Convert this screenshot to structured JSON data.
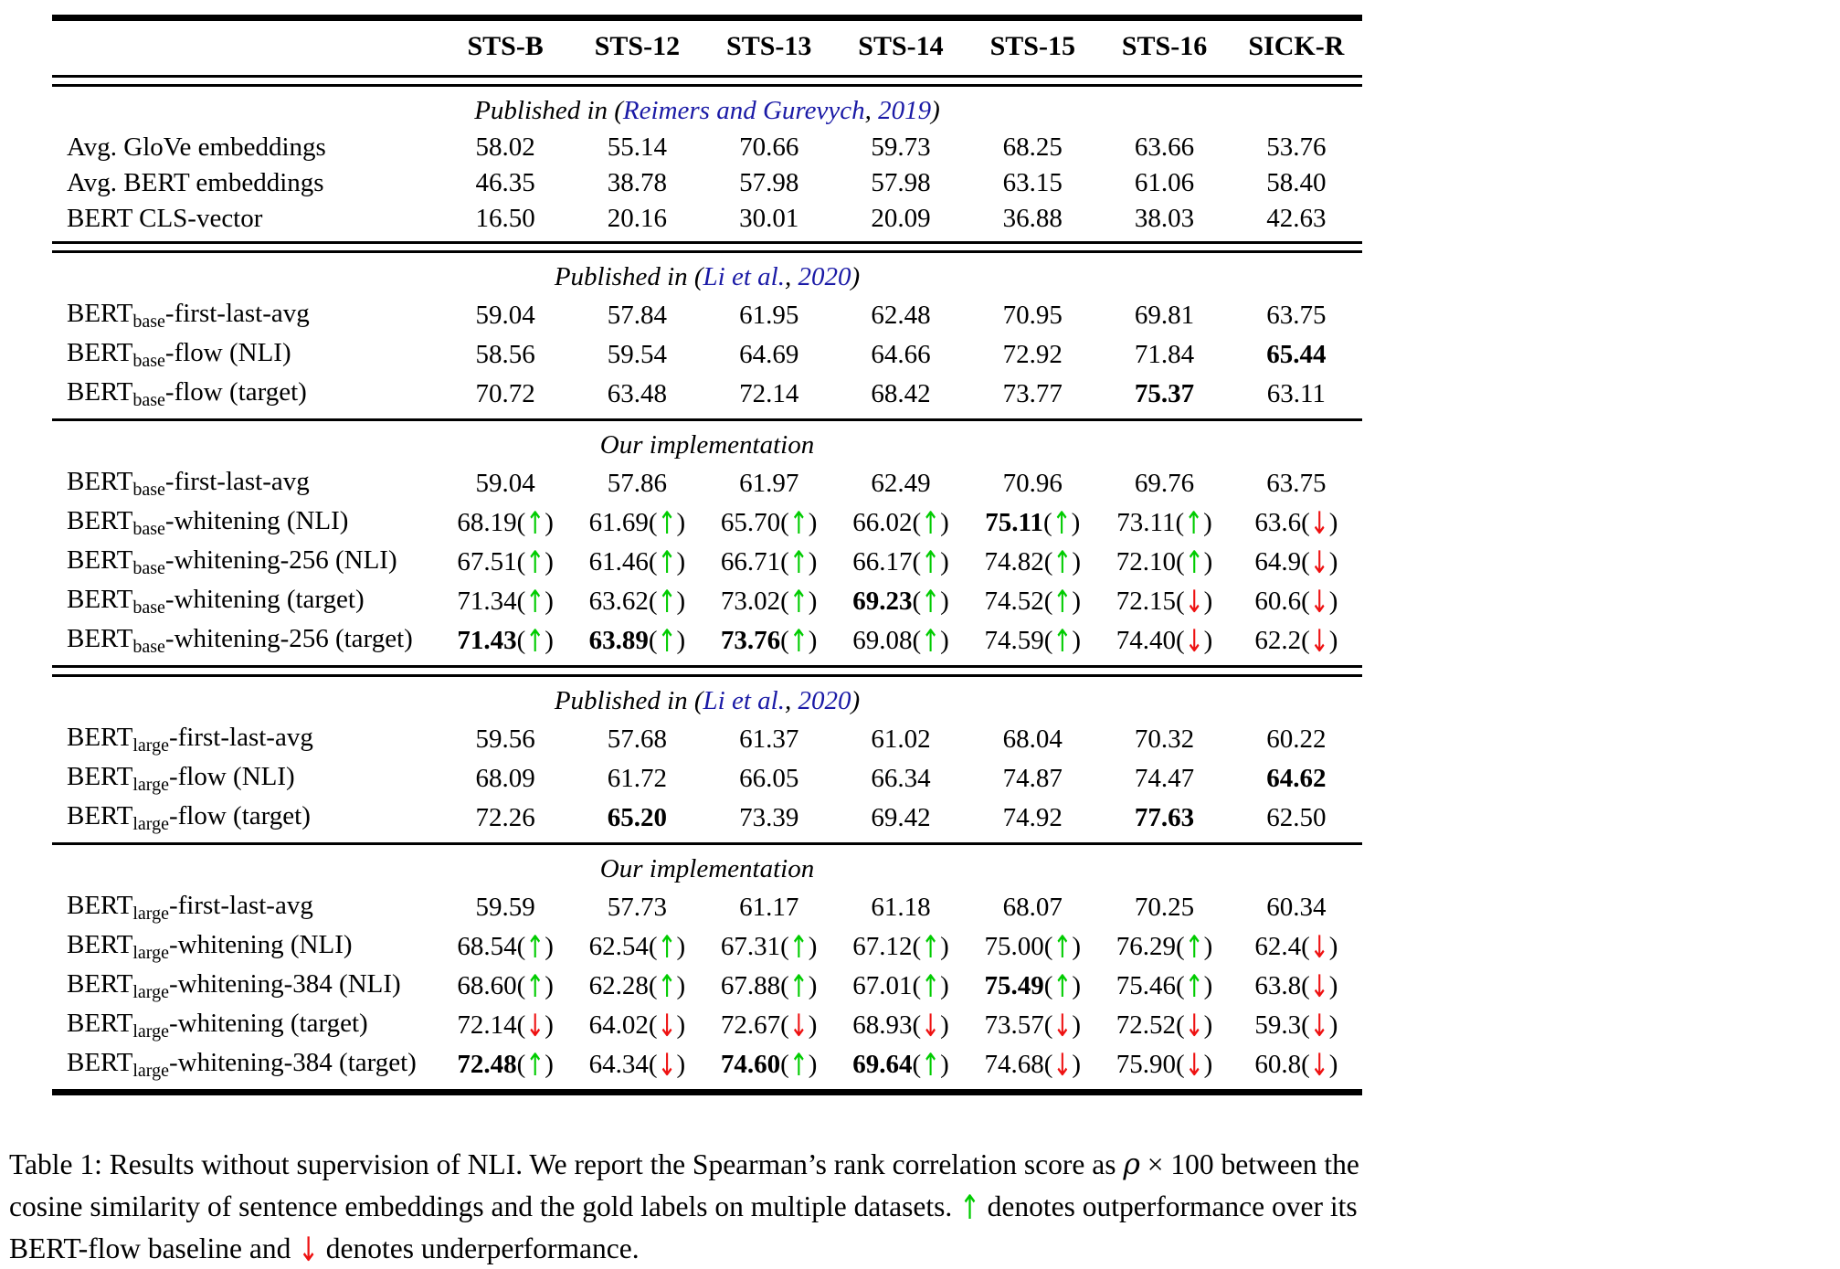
{
  "colors": {
    "link_blue": "#1a1aa6",
    "up_green": "#00cc00",
    "down_red": "#ee1111",
    "text": "#000000",
    "background": "#ffffff"
  },
  "icons": {
    "up_arrow": "↑",
    "down_arrow": "↓"
  },
  "table": {
    "columns": [
      "STS-B",
      "STS-12",
      "STS-13",
      "STS-14",
      "STS-15",
      "STS-16",
      "SICK-R"
    ],
    "sections": [
      {
        "rule_before": "double",
        "header_parts": [
          {
            "text": "Published in ("
          },
          {
            "text": "Reimers and Gurevych",
            "link": true
          },
          {
            "text": ", "
          },
          {
            "text": "2019",
            "link": true
          },
          {
            "text": ")"
          }
        ],
        "rows": [
          {
            "label": {
              "pre": "Avg. GloVe embeddings"
            },
            "cells": [
              {
                "v": "58.02"
              },
              {
                "v": "55.14"
              },
              {
                "v": "70.66"
              },
              {
                "v": "59.73"
              },
              {
                "v": "68.25"
              },
              {
                "v": "63.66"
              },
              {
                "v": "53.76"
              }
            ]
          },
          {
            "label": {
              "pre": "Avg. BERT embeddings"
            },
            "cells": [
              {
                "v": "46.35"
              },
              {
                "v": "38.78"
              },
              {
                "v": "57.98"
              },
              {
                "v": "57.98"
              },
              {
                "v": "63.15"
              },
              {
                "v": "61.06"
              },
              {
                "v": "58.40"
              }
            ]
          },
          {
            "label": {
              "pre": "BERT CLS-vector"
            },
            "cells": [
              {
                "v": "16.50"
              },
              {
                "v": "20.16"
              },
              {
                "v": "30.01"
              },
              {
                "v": "20.09"
              },
              {
                "v": "36.88"
              },
              {
                "v": "38.03"
              },
              {
                "v": "42.63"
              }
            ]
          }
        ]
      },
      {
        "rule_before": "double",
        "header_parts": [
          {
            "text": "Published in ("
          },
          {
            "text": "Li et al.",
            "link": true
          },
          {
            "text": ", "
          },
          {
            "text": "2020",
            "link": true
          },
          {
            "text": ")"
          }
        ],
        "rows": [
          {
            "label": {
              "pre": "BERT",
              "sub": "base",
              "post": "-first-last-avg"
            },
            "cells": [
              {
                "v": "59.04"
              },
              {
                "v": "57.84"
              },
              {
                "v": "61.95"
              },
              {
                "v": "62.48"
              },
              {
                "v": "70.95"
              },
              {
                "v": "69.81"
              },
              {
                "v": "63.75"
              }
            ]
          },
          {
            "label": {
              "pre": "BERT",
              "sub": "base",
              "post": "-flow (NLI)"
            },
            "cells": [
              {
                "v": "58.56"
              },
              {
                "v": "59.54"
              },
              {
                "v": "64.69"
              },
              {
                "v": "64.66"
              },
              {
                "v": "72.92"
              },
              {
                "v": "71.84"
              },
              {
                "v": "65.44",
                "b": true
              }
            ]
          },
          {
            "label": {
              "pre": "BERT",
              "sub": "base",
              "post": "-flow (target)"
            },
            "cells": [
              {
                "v": "70.72"
              },
              {
                "v": "63.48"
              },
              {
                "v": "72.14"
              },
              {
                "v": "68.42"
              },
              {
                "v": "73.77"
              },
              {
                "v": "75.37",
                "b": true
              },
              {
                "v": "63.11"
              }
            ]
          }
        ]
      },
      {
        "rule_before": "single",
        "header_parts": [
          {
            "text": "Our implementation"
          }
        ],
        "rows": [
          {
            "label": {
              "pre": "BERT",
              "sub": "base",
              "post": "-first-last-avg"
            },
            "cells": [
              {
                "v": "59.04"
              },
              {
                "v": "57.86"
              },
              {
                "v": "61.97"
              },
              {
                "v": "62.49"
              },
              {
                "v": "70.96"
              },
              {
                "v": "69.76"
              },
              {
                "v": "63.75"
              }
            ]
          },
          {
            "label": {
              "pre": "BERT",
              "sub": "base",
              "post": "-whitening (NLI)"
            },
            "cells": [
              {
                "v": "68.19",
                "a": "up"
              },
              {
                "v": "61.69",
                "a": "up"
              },
              {
                "v": "65.70",
                "a": "up"
              },
              {
                "v": "66.02",
                "a": "up"
              },
              {
                "v": "75.11",
                "b": true,
                "a": "up"
              },
              {
                "v": "73.11",
                "a": "up"
              },
              {
                "v": "63.6",
                "a": "down"
              }
            ]
          },
          {
            "label": {
              "pre": "BERT",
              "sub": "base",
              "post": "-whitening-256 (NLI)"
            },
            "cells": [
              {
                "v": "67.51",
                "a": "up"
              },
              {
                "v": "61.46",
                "a": "up"
              },
              {
                "v": "66.71",
                "a": "up"
              },
              {
                "v": "66.17",
                "a": "up"
              },
              {
                "v": "74.82",
                "a": "up"
              },
              {
                "v": "72.10",
                "a": "up"
              },
              {
                "v": "64.9",
                "a": "down"
              }
            ]
          },
          {
            "label": {
              "pre": "BERT",
              "sub": "base",
              "post": "-whitening (target)"
            },
            "cells": [
              {
                "v": "71.34",
                "a": "up"
              },
              {
                "v": "63.62",
                "a": "up"
              },
              {
                "v": "73.02",
                "a": "up"
              },
              {
                "v": "69.23",
                "b": true,
                "a": "up"
              },
              {
                "v": "74.52",
                "a": "up"
              },
              {
                "v": "72.15",
                "a": "down"
              },
              {
                "v": "60.6",
                "a": "down"
              }
            ]
          },
          {
            "label": {
              "pre": "BERT",
              "sub": "base",
              "post": "-whitening-256 (target)"
            },
            "cells": [
              {
                "v": "71.43",
                "b": true,
                "a": "up"
              },
              {
                "v": "63.89",
                "b": true,
                "a": "up"
              },
              {
                "v": "73.76",
                "b": true,
                "a": "up"
              },
              {
                "v": "69.08",
                "a": "up"
              },
              {
                "v": "74.59",
                "a": "up"
              },
              {
                "v": "74.40",
                "a": "down"
              },
              {
                "v": "62.2",
                "a": "down"
              }
            ]
          }
        ]
      },
      {
        "rule_before": "double",
        "header_parts": [
          {
            "text": "Published in ("
          },
          {
            "text": "Li et al.",
            "link": true
          },
          {
            "text": ", "
          },
          {
            "text": "2020",
            "link": true
          },
          {
            "text": ")"
          }
        ],
        "rows": [
          {
            "label": {
              "pre": "BERT",
              "sub": "large",
              "post": "-first-last-avg"
            },
            "cells": [
              {
                "v": "59.56"
              },
              {
                "v": "57.68"
              },
              {
                "v": "61.37"
              },
              {
                "v": "61.02"
              },
              {
                "v": "68.04"
              },
              {
                "v": "70.32"
              },
              {
                "v": "60.22"
              }
            ]
          },
          {
            "label": {
              "pre": "BERT",
              "sub": "large",
              "post": "-flow (NLI)"
            },
            "cells": [
              {
                "v": "68.09"
              },
              {
                "v": "61.72"
              },
              {
                "v": "66.05"
              },
              {
                "v": "66.34"
              },
              {
                "v": "74.87"
              },
              {
                "v": "74.47"
              },
              {
                "v": "64.62",
                "b": true
              }
            ]
          },
          {
            "label": {
              "pre": "BERT",
              "sub": "large",
              "post": "-flow (target)"
            },
            "cells": [
              {
                "v": "72.26"
              },
              {
                "v": "65.20",
                "b": true
              },
              {
                "v": "73.39"
              },
              {
                "v": "69.42"
              },
              {
                "v": "74.92"
              },
              {
                "v": "77.63",
                "b": true
              },
              {
                "v": "62.50"
              }
            ]
          }
        ]
      },
      {
        "rule_before": "single",
        "header_parts": [
          {
            "text": "Our implementation"
          }
        ],
        "rows": [
          {
            "label": {
              "pre": "BERT",
              "sub": "large",
              "post": "-first-last-avg"
            },
            "cells": [
              {
                "v": "59.59"
              },
              {
                "v": "57.73"
              },
              {
                "v": "61.17"
              },
              {
                "v": "61.18"
              },
              {
                "v": "68.07"
              },
              {
                "v": "70.25"
              },
              {
                "v": "60.34"
              }
            ]
          },
          {
            "label": {
              "pre": "BERT",
              "sub": "large",
              "post": "-whitening (NLI)"
            },
            "cells": [
              {
                "v": "68.54",
                "a": "up"
              },
              {
                "v": "62.54",
                "a": "up"
              },
              {
                "v": "67.31",
                "a": "up"
              },
              {
                "v": "67.12",
                "a": "up"
              },
              {
                "v": "75.00",
                "a": "up"
              },
              {
                "v": "76.29",
                "a": "up"
              },
              {
                "v": "62.4",
                "a": "down"
              }
            ]
          },
          {
            "label": {
              "pre": "BERT",
              "sub": "large",
              "post": "-whitening-384 (NLI)"
            },
            "cells": [
              {
                "v": "68.60",
                "a": "up"
              },
              {
                "v": "62.28",
                "a": "up"
              },
              {
                "v": "67.88",
                "a": "up"
              },
              {
                "v": "67.01",
                "a": "up"
              },
              {
                "v": "75.49",
                "b": true,
                "a": "up"
              },
              {
                "v": "75.46",
                "a": "up"
              },
              {
                "v": "63.8",
                "a": "down"
              }
            ]
          },
          {
            "label": {
              "pre": "BERT",
              "sub": "large",
              "post": "-whitening (target)"
            },
            "cells": [
              {
                "v": "72.14",
                "a": "down"
              },
              {
                "v": "64.02",
                "a": "down"
              },
              {
                "v": "72.67",
                "a": "down"
              },
              {
                "v": "68.93",
                "a": "down"
              },
              {
                "v": "73.57",
                "a": "down"
              },
              {
                "v": "72.52",
                "a": "down"
              },
              {
                "v": "59.3",
                "a": "down"
              }
            ]
          },
          {
            "label": {
              "pre": "BERT",
              "sub": "large",
              "post": "-whitening-384 (target)"
            },
            "cells": [
              {
                "v": "72.48",
                "b": true,
                "a": "up"
              },
              {
                "v": "64.34",
                "a": "down"
              },
              {
                "v": "74.60",
                "b": true,
                "a": "up"
              },
              {
                "v": "69.64",
                "b": true,
                "a": "up"
              },
              {
                "v": "74.68",
                "a": "down"
              },
              {
                "v": "75.90",
                "a": "down"
              },
              {
                "v": "60.8",
                "a": "down"
              }
            ]
          }
        ]
      }
    ]
  },
  "caption": {
    "parts": [
      {
        "text": "Table 1: Results without supervision of NLI. We report the Spearman’s rank correlation score as "
      },
      {
        "text": "ρ",
        "italic": true
      },
      {
        "text": " × 100 between the cosine similarity of sentence embeddings and the gold labels on multiple datasets. "
      },
      {
        "text": "↑",
        "color": "up"
      },
      {
        "text": " denotes outperformance over its BERT-flow baseline and "
      },
      {
        "text": "↓",
        "color": "down"
      },
      {
        "text": " denotes underperformance."
      }
    ]
  }
}
